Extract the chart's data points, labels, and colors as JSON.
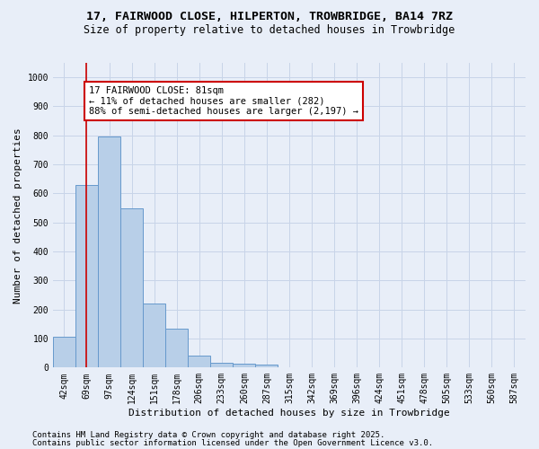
{
  "title_line1": "17, FAIRWOOD CLOSE, HILPERTON, TROWBRIDGE, BA14 7RZ",
  "title_line2": "Size of property relative to detached houses in Trowbridge",
  "xlabel": "Distribution of detached houses by size in Trowbridge",
  "ylabel": "Number of detached properties",
  "bar_labels": [
    "42sqm",
    "69sqm",
    "97sqm",
    "124sqm",
    "151sqm",
    "178sqm",
    "206sqm",
    "233sqm",
    "260sqm",
    "287sqm",
    "315sqm",
    "342sqm",
    "369sqm",
    "396sqm",
    "424sqm",
    "451sqm",
    "478sqm",
    "505sqm",
    "533sqm",
    "560sqm",
    "587sqm"
  ],
  "bar_values": [
    107,
    630,
    795,
    548,
    222,
    135,
    42,
    16,
    12,
    10,
    0,
    0,
    0,
    0,
    0,
    0,
    0,
    0,
    0,
    0,
    0
  ],
  "bar_color": "#b8cfe8",
  "bar_edge_color": "#6699cc",
  "grid_color": "#c8d4e8",
  "background_color": "#e8eef8",
  "annotation_text": "17 FAIRWOOD CLOSE: 81sqm\n← 11% of detached houses are smaller (282)\n88% of semi-detached houses are larger (2,197) →",
  "annotation_box_color": "#ffffff",
  "annotation_box_edge_color": "#cc0000",
  "vline_color": "#cc0000",
  "vline_x": 1.0,
  "ylim": [
    0,
    1050
  ],
  "yticks": [
    0,
    100,
    200,
    300,
    400,
    500,
    600,
    700,
    800,
    900,
    1000
  ],
  "footer_line1": "Contains HM Land Registry data © Crown copyright and database right 2025.",
  "footer_line2": "Contains public sector information licensed under the Open Government Licence v3.0.",
  "footer_fontsize": 6.5,
  "title1_fontsize": 9.5,
  "title2_fontsize": 8.5,
  "xlabel_fontsize": 8,
  "ylabel_fontsize": 8,
  "tick_fontsize": 7,
  "annotation_fontsize": 7.5
}
